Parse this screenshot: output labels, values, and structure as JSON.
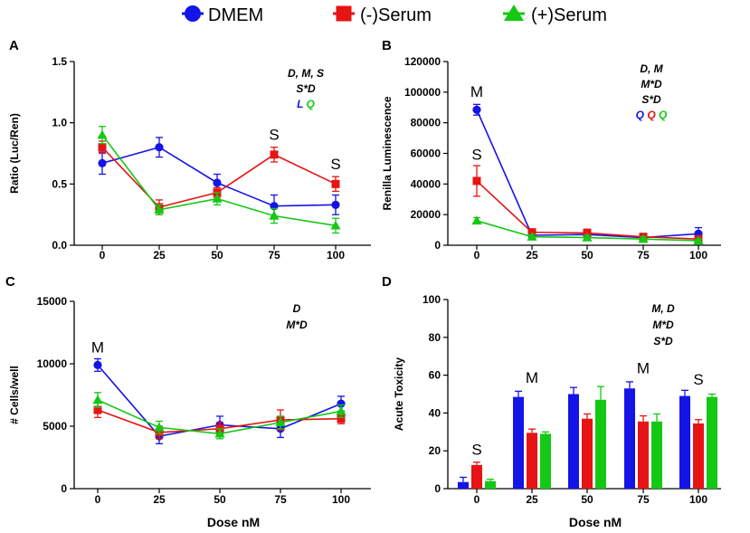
{
  "legend": [
    {
      "name": "DMEM",
      "color": "#1414e6",
      "marker": "circle"
    },
    {
      "name": "(-)Serum",
      "color": "#e61414",
      "marker": "square"
    },
    {
      "name": "(+)Serum",
      "color": "#14c814",
      "marker": "triangle"
    }
  ],
  "chart_data": [
    {
      "panel": "A",
      "type": "line",
      "categories": [
        "0",
        "25",
        "50",
        "75",
        "100"
      ],
      "xlabel": "",
      "ylabel": "Ratio (Luc/Ren)",
      "ylim": [
        0,
        1.5
      ],
      "yticks": [
        "0.0",
        "0.5",
        "1.0",
        "1.5"
      ],
      "series": [
        {
          "name": "DMEM",
          "values": [
            0.67,
            0.8,
            0.51,
            0.32,
            0.33
          ],
          "errors": [
            0.09,
            0.08,
            0.07,
            0.09,
            0.08
          ]
        },
        {
          "name": "(-)Serum",
          "values": [
            0.8,
            0.31,
            0.43,
            0.74,
            0.5
          ],
          "errors": [
            0.05,
            0.06,
            0.04,
            0.06,
            0.06
          ]
        },
        {
          "name": "(+)Serum",
          "values": [
            0.9,
            0.29,
            0.38,
            0.24,
            0.16
          ],
          "errors": [
            0.07,
            0.04,
            0.05,
            0.06,
            0.06
          ]
        }
      ],
      "point_labels": [
        {
          "category": "75",
          "text": "S",
          "y": 0.86
        },
        {
          "category": "100",
          "text": "S",
          "y": 0.62
        }
      ],
      "annotation_lines": [
        [
          {
            "text": "D, M, S",
            "color": "#000000"
          }
        ],
        [
          {
            "text": "S*D",
            "color": "#000000"
          }
        ],
        [
          {
            "text": "L",
            "color": "#1414e6"
          },
          {
            "text": " Q",
            "color": "#14c814"
          }
        ]
      ]
    },
    {
      "panel": "B",
      "type": "line",
      "categories": [
        "0",
        "25",
        "50",
        "75",
        "100"
      ],
      "xlabel": "",
      "ylabel": "Renilla Luminescence",
      "ylim": [
        0,
        120000
      ],
      "yticks": [
        "0",
        "20000",
        "40000",
        "60000",
        "80000",
        "100000",
        "120000"
      ],
      "series": [
        {
          "name": "DMEM",
          "values": [
            88500,
            6500,
            7000,
            5000,
            7500
          ],
          "errors": [
            3500,
            2500,
            3000,
            2500,
            4000
          ]
        },
        {
          "name": "(-)Serum",
          "values": [
            42000,
            8500,
            8000,
            5500,
            4000
          ],
          "errors": [
            10000,
            2000,
            2500,
            2000,
            2000
          ]
        },
        {
          "name": "(+)Serum",
          "values": [
            16000,
            5500,
            5000,
            4000,
            3000
          ],
          "errors": [
            2000,
            1500,
            1500,
            1500,
            1000
          ]
        }
      ],
      "point_labels": [
        {
          "category": "0",
          "text": "M",
          "y": 97000
        },
        {
          "category": "0",
          "text": "S",
          "y": 56000
        }
      ],
      "annotation_lines": [
        [
          {
            "text": "D, M",
            "color": "#000000"
          }
        ],
        [
          {
            "text": "M*D",
            "color": "#000000"
          }
        ],
        [
          {
            "text": "S*D",
            "color": "#000000"
          }
        ],
        [
          {
            "text": "Q",
            "color": "#1414e6"
          },
          {
            "text": " Q",
            "color": "#e61414"
          },
          {
            "text": " Q",
            "color": "#14c814"
          }
        ]
      ]
    },
    {
      "panel": "C",
      "type": "line",
      "categories": [
        "0",
        "25",
        "50",
        "75",
        "100"
      ],
      "xlabel": "Dose nM",
      "ylabel": "# Cells/well",
      "ylim": [
        0,
        15000
      ],
      "yticks": [
        "0",
        "5000",
        "10000",
        "15000"
      ],
      "series": [
        {
          "name": "DMEM",
          "values": [
            9900,
            4200,
            5100,
            4800,
            6800
          ],
          "errors": [
            500,
            600,
            700,
            700,
            600
          ]
        },
        {
          "name": "(-)Serum",
          "values": [
            6300,
            4500,
            4800,
            5500,
            5600
          ],
          "errors": [
            600,
            500,
            500,
            800,
            400
          ]
        },
        {
          "name": "(+)Serum",
          "values": [
            7100,
            4900,
            4400,
            5300,
            6200
          ],
          "errors": [
            600,
            500,
            400,
            500,
            500
          ]
        }
      ],
      "point_labels": [
        {
          "category": "0",
          "text": "M",
          "y": 10900
        }
      ],
      "annotation_lines": [
        [
          {
            "text": "D",
            "color": "#000000"
          }
        ],
        [
          {
            "text": "M*D",
            "color": "#000000"
          }
        ]
      ]
    },
    {
      "panel": "D",
      "type": "bar",
      "categories": [
        "0",
        "25",
        "50",
        "75",
        "100"
      ],
      "xlabel": "Dose nM",
      "ylabel": "Acute Toxicity",
      "ylim": [
        0,
        100
      ],
      "yticks": [
        "0",
        "20",
        "40",
        "60",
        "80",
        "100"
      ],
      "series": [
        {
          "name": "DMEM",
          "values": [
            3.5,
            48.5,
            50,
            53,
            49
          ],
          "errors": [
            2.5,
            3,
            3.5,
            3.5,
            3
          ]
        },
        {
          "name": "(-)Serum",
          "values": [
            12.5,
            29.5,
            37,
            35.5,
            34.5
          ],
          "errors": [
            1.5,
            2,
            2.5,
            3,
            2
          ]
        },
        {
          "name": "(+)Serum",
          "values": [
            4,
            29,
            47,
            35.5,
            48.5
          ],
          "errors": [
            1,
            1,
            7,
            4,
            1.5
          ]
        }
      ],
      "point_labels": [
        {
          "category": "0",
          "text": "S",
          "y": 18
        },
        {
          "category": "25",
          "text": "M",
          "y": 56
        },
        {
          "category": "75",
          "text": "M",
          "y": 61
        },
        {
          "category": "100",
          "text": "S",
          "y": 55
        }
      ],
      "annotation_lines": [
        [
          {
            "text": "M, D",
            "color": "#000000"
          }
        ],
        [
          {
            "text": "M*D",
            "color": "#000000"
          }
        ],
        [
          {
            "text": "S*D",
            "color": "#000000"
          }
        ]
      ]
    }
  ]
}
